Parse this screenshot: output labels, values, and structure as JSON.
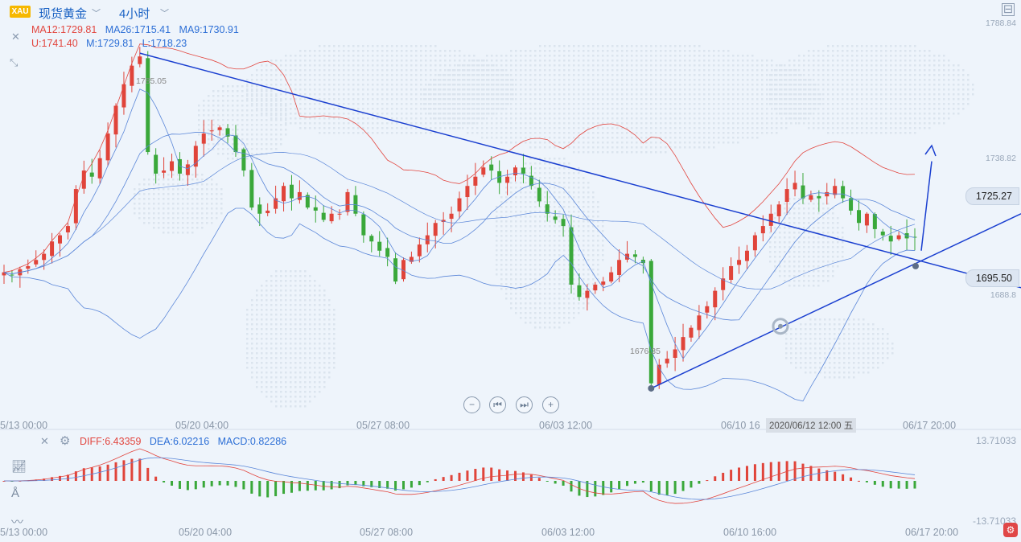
{
  "header": {
    "symbol_badge": "XAU",
    "symbol_name": "现货黄金",
    "period": "4小时",
    "ma": {
      "ma12": "MA12:1729.81",
      "ma26": "MA26:1715.41",
      "ma9": "MA9:1730.91"
    },
    "boll": {
      "u": "U:1741.40",
      "m": "M:1729.81",
      "l": "L:1718.23"
    }
  },
  "price_axis": {
    "top": "1788.84",
    "mid": "1738.82",
    "current": "1725.27",
    "support": "1695.50",
    "low": "1688.8"
  },
  "annotations": {
    "high": "1785.05",
    "low": "1676.35"
  },
  "x_labels": [
    "5/13 00:00",
    "05/20 04:00",
    "05/27 08:00",
    "06/03 12:00",
    "06/10 16",
    "06/17 20:00"
  ],
  "x_labels_bottom": [
    "5/13 00:00",
    "05/20 04:00",
    "05/27 08:00",
    "06/03 12:00",
    "06/10 16:00",
    "06/17 20:00"
  ],
  "crosshair_date": "2020/06/12 12:00 五",
  "macd": {
    "diff": "DIFF:6.43359",
    "dea": "DEA:6.02216",
    "macd": "MACD:0.82286",
    "axis_top": "13.71033",
    "axis_bottom": "-13.71033"
  },
  "colors": {
    "up": "#e0443a",
    "down": "#3aa83a",
    "blue": "#1a3fd0",
    "ma_blue": "#5a86d8",
    "boll_red": "#e2463f"
  },
  "icons": [
    "close-icon",
    "expand-icon",
    "settings-icon",
    "zoom-out-icon",
    "prev-icon",
    "next-icon",
    "zoom-in-icon",
    "chart-tool-icon",
    "draw-tool-icon",
    "indicator-icon",
    "fullscreen-icon"
  ],
  "chart_data": {
    "type": "candlestick",
    "symbol": "现货黄金",
    "interval": "4小时",
    "ylim": [
      1668,
      1795
    ],
    "x_range": [
      "2020-05-13 00:00",
      "2020-06-17 20:00"
    ],
    "series": [
      {
        "name": "MA12",
        "value": 1729.81
      },
      {
        "name": "MA26",
        "value": 1715.41
      },
      {
        "name": "MA9",
        "value": 1730.91
      },
      {
        "name": "U",
        "value": 1741.4
      },
      {
        "name": "M",
        "value": 1729.81
      },
      {
        "name": "L",
        "value": 1718.23
      }
    ],
    "closes": [
      1714,
      1713,
      1715,
      1716,
      1718,
      1720,
      1724,
      1726,
      1729,
      1741,
      1747,
      1745,
      1751,
      1759,
      1768,
      1775,
      1781,
      1784,
      1753,
      1746,
      1747,
      1750,
      1746,
      1749,
      1755,
      1759,
      1760,
      1761,
      1758,
      1753,
      1747,
      1735,
      1733,
      1734,
      1738,
      1742,
      1738,
      1740,
      1735,
      1734,
      1731,
      1733,
      1733,
      1740,
      1733,
      1726,
      1724,
      1721,
      1719,
      1711,
      1718,
      1719,
      1723,
      1726,
      1730,
      1731,
      1733,
      1738,
      1742,
      1745,
      1748,
      1747,
      1743,
      1745,
      1748,
      1746,
      1742,
      1737,
      1733,
      1731,
      1729,
      1710,
      1706,
      1708,
      1710,
      1711,
      1714,
      1718,
      1720,
      1719,
      1717,
      1678,
      1684,
      1686,
      1689,
      1693,
      1696,
      1700,
      1703,
      1708,
      1712,
      1716,
      1718,
      1721,
      1726,
      1729,
      1733,
      1736,
      1741,
      1743,
      1738,
      1739,
      1738,
      1740,
      1742,
      1738,
      1734,
      1730,
      1733,
      1728,
      1726,
      1724,
      1726,
      1725,
      1725.27
    ],
    "annotations": {
      "high": 1785.05,
      "low": 1676.35
    },
    "trendlines": [
      {
        "from": [
          "2020-05-20",
          1785.05
        ],
        "to": [
          "2020-06-17",
          1715
        ]
      },
      {
        "from": [
          "2020-06-05",
          1676.35
        ],
        "to": [
          "2020-06-17",
          1722
        ]
      }
    ],
    "macd": {
      "diff": 6.43359,
      "dea": 6.02216,
      "macd": 0.82286,
      "ylim": [
        -13.71033,
        13.71033
      ]
    }
  }
}
